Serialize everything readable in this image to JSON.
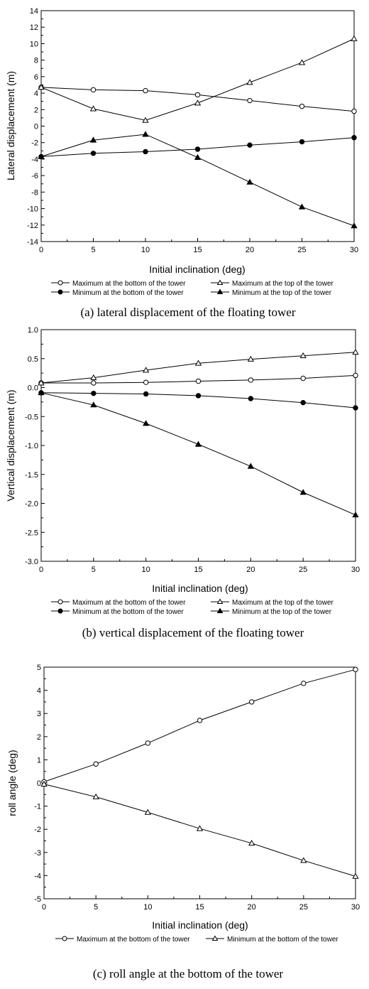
{
  "chart_data": [
    {
      "type": "line",
      "caption": "(a) lateral displacement of the floating tower",
      "xlabel": "Initial inclination (deg)",
      "ylabel": "Lateral displacement (m)",
      "xlim": [
        0,
        30
      ],
      "ylim": [
        -14,
        14
      ],
      "xticks": [
        0,
        5,
        10,
        15,
        20,
        25,
        30
      ],
      "yticks": [
        -14,
        -12,
        -10,
        -8,
        -6,
        -4,
        -2,
        0,
        2,
        4,
        6,
        8,
        10,
        12,
        14
      ],
      "legend_position": "bottom",
      "series": [
        {
          "name": "Maximum at the bottom of the tower",
          "marker": "circle-open",
          "x": [
            0,
            5,
            10,
            15,
            20,
            25,
            30
          ],
          "y": [
            4.7,
            4.4,
            4.3,
            3.8,
            3.1,
            2.4,
            1.8
          ]
        },
        {
          "name": "Maximum at the top of the tower",
          "marker": "triangle-open",
          "x": [
            0,
            5,
            10,
            15,
            20,
            25,
            30
          ],
          "y": [
            4.7,
            2.1,
            0.7,
            2.8,
            5.3,
            7.7,
            10.6
          ]
        },
        {
          "name": "Minimum at the bottom of the tower",
          "marker": "circle-filled",
          "x": [
            0,
            5,
            10,
            15,
            20,
            25,
            30
          ],
          "y": [
            -3.7,
            -3.3,
            -3.1,
            -2.8,
            -2.3,
            -1.9,
            -1.4
          ]
        },
        {
          "name": "Minimum at the top of the tower",
          "marker": "triangle-filled",
          "x": [
            0,
            5,
            10,
            15,
            20,
            25,
            30
          ],
          "y": [
            -3.7,
            -1.7,
            -1.0,
            -3.8,
            -6.8,
            -9.8,
            -12.1
          ]
        }
      ]
    },
    {
      "type": "line",
      "caption": "(b) vertical displacement of the floating tower",
      "xlabel": "Initial inclination (deg)",
      "ylabel": "Vertical displacement (m)",
      "xlim": [
        0,
        30
      ],
      "ylim": [
        -3.0,
        1.0
      ],
      "xticks": [
        0,
        5,
        10,
        15,
        20,
        25,
        30
      ],
      "yticks": [
        -3.0,
        -2.5,
        -2.0,
        -1.5,
        -1.0,
        -0.5,
        0.0,
        0.5,
        1.0
      ],
      "legend_position": "bottom",
      "series": [
        {
          "name": "Maximum at the bottom of the tower",
          "marker": "circle-open",
          "x": [
            0,
            5,
            10,
            15,
            20,
            25,
            30
          ],
          "y": [
            0.08,
            0.08,
            0.09,
            0.11,
            0.13,
            0.16,
            0.21
          ]
        },
        {
          "name": "Maximum at the top of the tower",
          "marker": "triangle-open",
          "x": [
            0,
            5,
            10,
            15,
            20,
            25,
            30
          ],
          "y": [
            0.08,
            0.17,
            0.3,
            0.42,
            0.49,
            0.55,
            0.61
          ]
        },
        {
          "name": "Minimum at the bottom of the tower",
          "marker": "circle-filled",
          "x": [
            0,
            5,
            10,
            15,
            20,
            25,
            30
          ],
          "y": [
            -0.09,
            -0.1,
            -0.11,
            -0.14,
            -0.19,
            -0.26,
            -0.35
          ]
        },
        {
          "name": "Minimum at the top of the tower",
          "marker": "triangle-filled",
          "x": [
            0,
            5,
            10,
            15,
            20,
            25,
            30
          ],
          "y": [
            -0.09,
            -0.3,
            -0.62,
            -0.98,
            -1.36,
            -1.81,
            -2.2
          ]
        }
      ]
    },
    {
      "type": "line",
      "caption": "(c) roll angle at the bottom of the tower",
      "xlabel": "Initial inclination (deg)",
      "ylabel": "roll angle (deg)",
      "xlim": [
        0,
        30
      ],
      "ylim": [
        -5,
        5
      ],
      "xticks": [
        0,
        5,
        10,
        15,
        20,
        25,
        30
      ],
      "yticks": [
        -5,
        -4,
        -3,
        -2,
        -1,
        0,
        1,
        2,
        3,
        4,
        5
      ],
      "legend_position": "bottom",
      "series": [
        {
          "name": "Maximum at the bottom of the tower",
          "marker": "circle-open",
          "x": [
            0,
            5,
            10,
            15,
            20,
            25,
            30
          ],
          "y": [
            0.05,
            0.82,
            1.72,
            2.7,
            3.5,
            4.3,
            4.9
          ]
        },
        {
          "name": "Minimum at the bottom of the tower",
          "marker": "triangle-open",
          "x": [
            0,
            5,
            10,
            15,
            20,
            25,
            30
          ],
          "y": [
            -0.05,
            -0.6,
            -1.27,
            -1.97,
            -2.6,
            -3.35,
            -4.03
          ]
        }
      ]
    }
  ]
}
